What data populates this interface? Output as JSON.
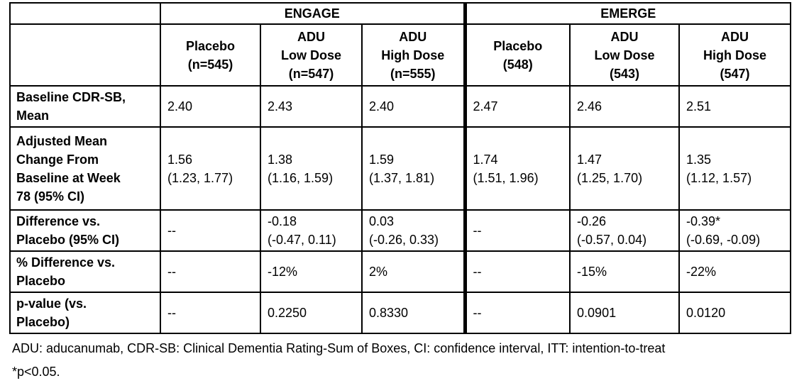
{
  "table": {
    "trials": [
      "ENGAGE",
      "EMERGE"
    ],
    "column_headers": [
      "Placebo\n(n=545)",
      "ADU\nLow Dose\n(n=547)",
      "ADU\nHigh Dose\n(n=555)",
      "Placebo\n(548)",
      "ADU\nLow Dose\n(543)",
      "ADU\nHigh Dose\n(547)"
    ],
    "rows": [
      {
        "label": "Baseline CDR-SB,\nMean",
        "values": [
          "2.40",
          "2.43",
          "2.40",
          "2.47",
          "2.46",
          "2.51"
        ]
      },
      {
        "label": "Adjusted Mean\nChange From\nBaseline at Week\n78 (95% CI)",
        "values": [
          "1.56\n(1.23, 1.77)",
          "1.38\n(1.16, 1.59)",
          "1.59\n(1.37, 1.81)",
          "1.74\n(1.51, 1.96)",
          "1.47\n(1.25, 1.70)",
          "1.35\n(1.12, 1.57)"
        ]
      },
      {
        "label": "Difference vs.\nPlacebo (95% CI)",
        "values": [
          "--",
          "-0.18\n(-0.47, 0.11)",
          "0.03\n(-0.26, 0.33)",
          "--",
          "-0.26\n(-0.57, 0.04)",
          "-0.39*\n(-0.69, -0.09)"
        ]
      },
      {
        "label": "% Difference vs.\nPlacebo",
        "values": [
          "--",
          "-12%",
          "2%",
          "--",
          "-15%",
          "-22%"
        ]
      },
      {
        "label": "p-value (vs.\nPlacebo)",
        "values": [
          "--",
          "0.2250",
          "0.8330",
          "--",
          "0.0901",
          "0.0120"
        ]
      }
    ]
  },
  "footnotes": [
    "ADU: aducanumab, CDR-SB: Clinical Dementia Rating-Sum of Boxes, CI: confidence interval, ITT: intention-to-treat",
    "*p<0.05."
  ],
  "colors": {
    "border": "#000000",
    "text": "#000000",
    "background": "#ffffff"
  }
}
